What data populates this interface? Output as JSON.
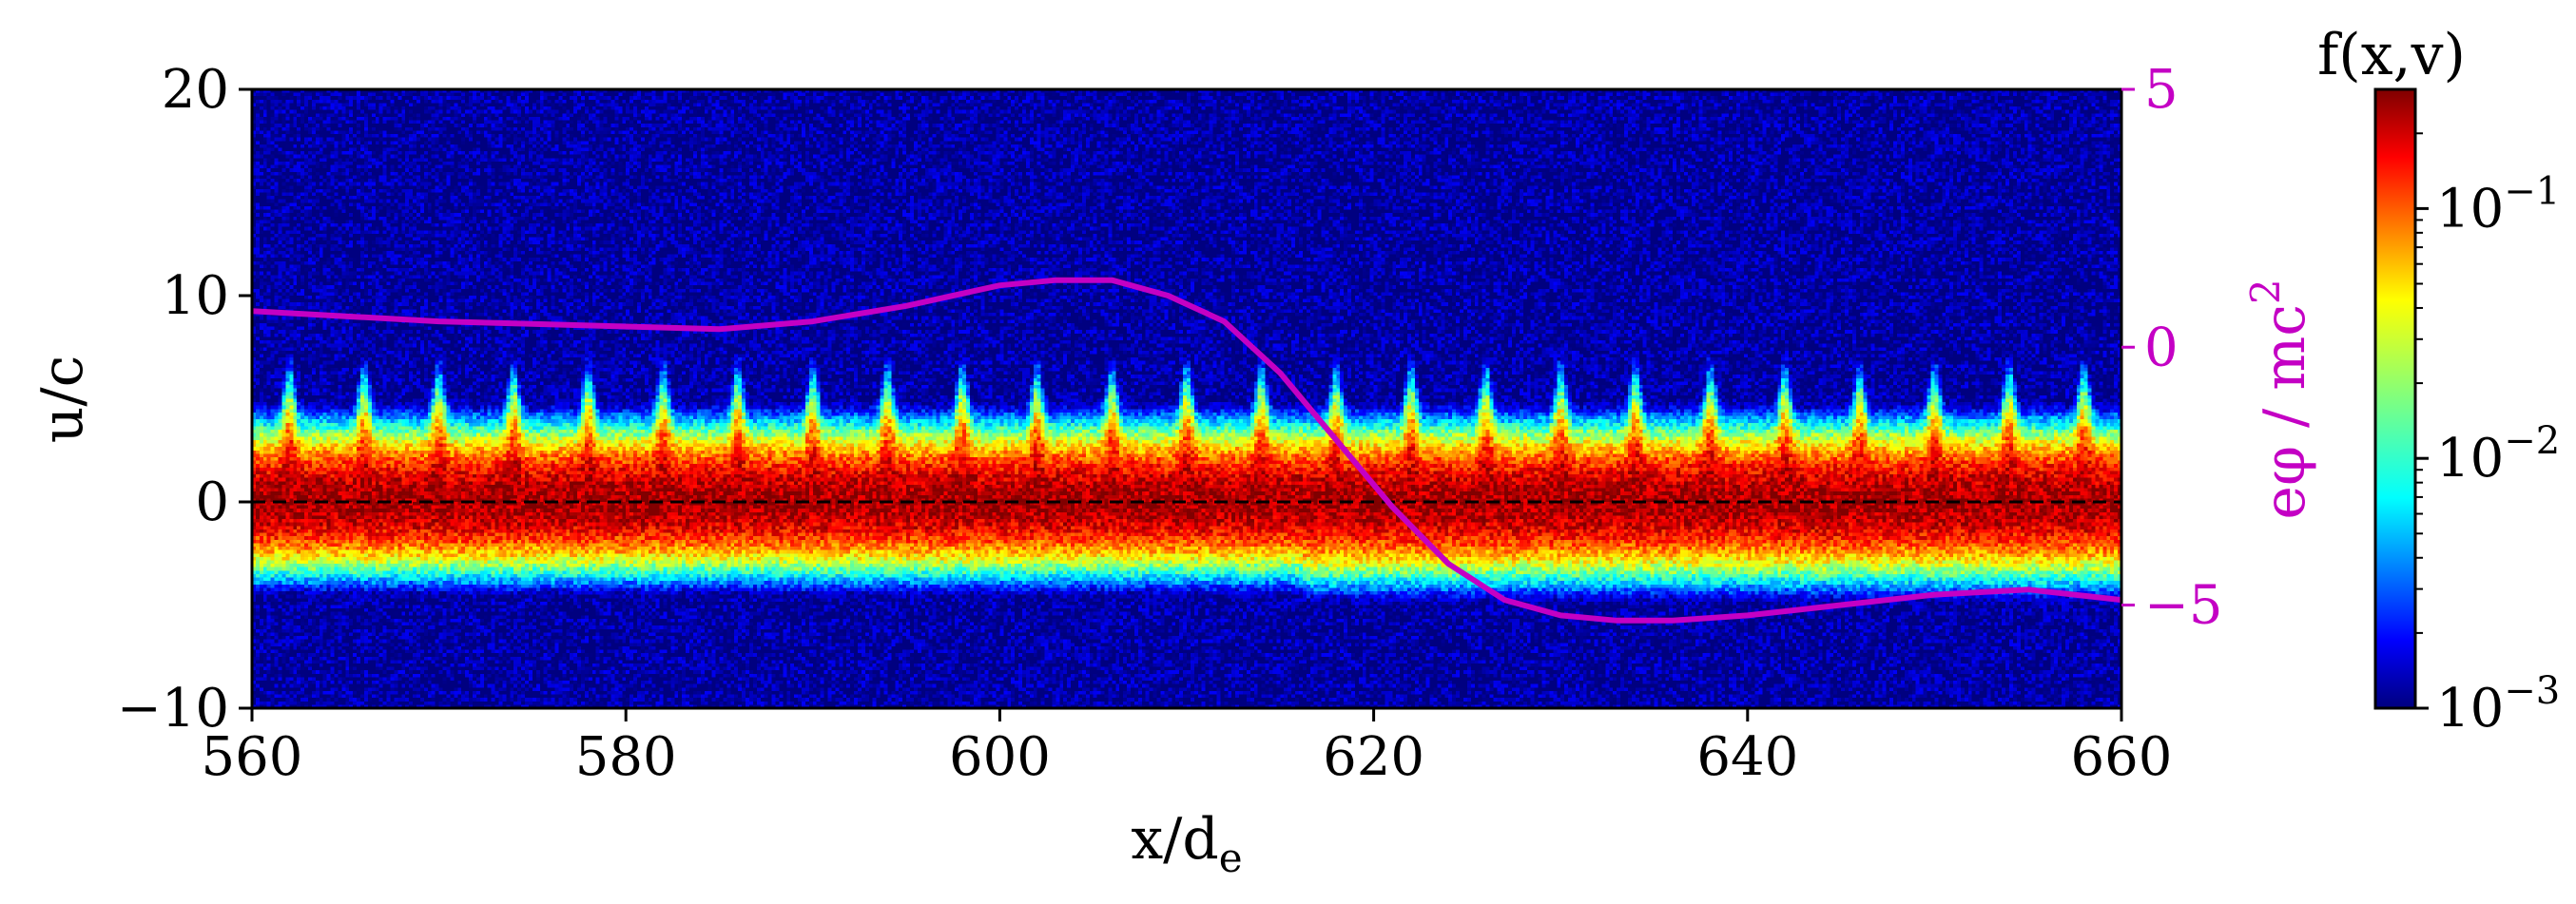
{
  "chart_data": {
    "type": "heatmap",
    "x": {
      "label": "x/d",
      "label_subscript": "e",
      "lim": [
        560,
        660
      ],
      "ticks": [
        560,
        580,
        600,
        620,
        640,
        660
      ],
      "tick_labels": [
        "560",
        "580",
        "600",
        "620",
        "640",
        "660"
      ]
    },
    "y": {
      "label": "u/c",
      "lim": [
        -10,
        20
      ],
      "ticks": [
        -10,
        0,
        10,
        20
      ],
      "tick_labels": [
        "−10",
        "0",
        "10",
        "20"
      ]
    },
    "y2": {
      "label": "eφ / mc",
      "label_superscript": "2",
      "lim": [
        -7,
        5
      ],
      "ticks": [
        -5,
        0,
        5
      ],
      "tick_labels": [
        "−5",
        "0",
        "5"
      ],
      "color": "#c400c4"
    },
    "colorbar": {
      "label": "f(x,v)",
      "scale": "log",
      "lim": [
        0.001,
        0.3
      ],
      "ticks": [
        0.001,
        0.01,
        0.1
      ],
      "tick_base": "10",
      "tick_exponents": [
        "−3",
        "−2",
        "−1"
      ],
      "colormap": "jet"
    },
    "distribution": {
      "core_center_u": 0,
      "core_width_u": 3.0,
      "upper_edge_u": 5.5,
      "lower_edge_u": -5.0,
      "wave_period_x": 4.0,
      "wave_peak_u": 8.5,
      "floor_level": 0.001
    },
    "reference_line": {
      "u": 0,
      "style": "dashed",
      "color": "#000000"
    },
    "potential_series": {
      "name": "eφ / mc²",
      "color": "#c400c4",
      "x": [
        560,
        565,
        570,
        575,
        580,
        585,
        590,
        595,
        600,
        603,
        606,
        609,
        612,
        615,
        618,
        621,
        624,
        627,
        630,
        633,
        636,
        640,
        645,
        650,
        655,
        660
      ],
      "y": [
        0.7,
        0.6,
        0.5,
        0.45,
        0.4,
        0.35,
        0.5,
        0.8,
        1.2,
        1.3,
        1.3,
        1.0,
        0.5,
        -0.5,
        -1.8,
        -3.1,
        -4.2,
        -4.9,
        -5.2,
        -5.3,
        -5.3,
        -5.2,
        -5.0,
        -4.8,
        -4.7,
        -4.9
      ]
    }
  }
}
